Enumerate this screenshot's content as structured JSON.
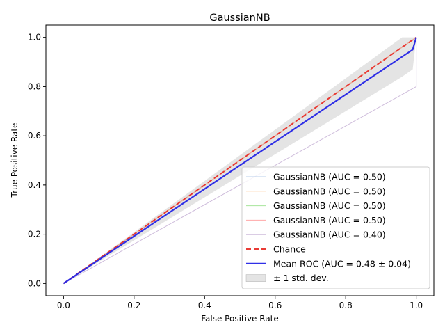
{
  "chart_data": {
    "type": "line",
    "title": "GaussianNB",
    "xlabel": "False Positive Rate",
    "ylabel": "True Positive Rate",
    "xlim": [
      -0.05,
      1.05
    ],
    "ylim": [
      -0.05,
      1.05
    ],
    "xticks": [
      "0.0",
      "0.2",
      "0.4",
      "0.6",
      "0.8",
      "1.0"
    ],
    "yticks": [
      "0.0",
      "0.2",
      "0.4",
      "0.6",
      "0.8",
      "1.0"
    ],
    "xtick_values": [
      0,
      0.2,
      0.4,
      0.6,
      0.8,
      1.0
    ],
    "ytick_values": [
      0,
      0.2,
      0.4,
      0.6,
      0.8,
      1.0
    ],
    "grid": false,
    "legend_position": "lower-right",
    "series": [
      {
        "name": "GaussianNB (AUC = 0.50)",
        "color": "#aec7e8",
        "style": "thin",
        "x": [
          0,
          1,
          1
        ],
        "y": [
          0,
          1,
          1
        ]
      },
      {
        "name": "GaussianNB (AUC = 0.50)",
        "color": "#ffbb78",
        "style": "thin",
        "x": [
          0,
          1,
          1
        ],
        "y": [
          0,
          1,
          1
        ]
      },
      {
        "name": "GaussianNB (AUC = 0.50)",
        "color": "#98df8a",
        "style": "thin",
        "x": [
          0,
          1,
          1
        ],
        "y": [
          0,
          1,
          1
        ]
      },
      {
        "name": "GaussianNB (AUC = 0.50)",
        "color": "#ff9896",
        "style": "thin",
        "x": [
          0,
          1,
          1
        ],
        "y": [
          0,
          1,
          1
        ]
      },
      {
        "name": "GaussianNB (AUC = 0.40)",
        "color": "#c5b0d5",
        "style": "thin",
        "x": [
          0,
          1,
          1
        ],
        "y": [
          0,
          0.8,
          1
        ]
      },
      {
        "name": "Chance",
        "color": "#e8302a",
        "style": "dashed",
        "x": [
          0,
          1
        ],
        "y": [
          0,
          1
        ]
      },
      {
        "name": "Mean ROC (AUC = 0.48 ± 0.04)",
        "color": "#2525e6",
        "style": "bold",
        "x": [
          0,
          0.99,
          1
        ],
        "y": [
          0,
          0.95,
          1
        ]
      }
    ],
    "band": {
      "name": "± 1 std. dev.",
      "color": "#b3b3b3",
      "x": [
        0,
        0.96,
        0.99,
        1.0
      ],
      "upper": [
        0,
        1.0,
        1.0,
        1.0
      ],
      "lower": [
        0,
        0.84,
        0.87,
        1.0
      ]
    }
  }
}
